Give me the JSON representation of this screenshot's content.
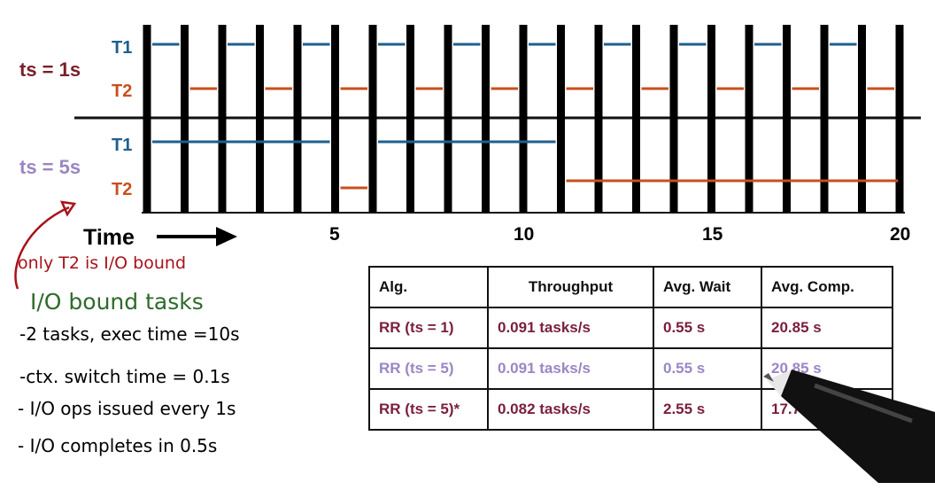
{
  "colors": {
    "t1": "#1f5f8f",
    "t2": "#c8501e",
    "ts1": "#7a1f2b",
    "ts5": "#9a86c4",
    "note_red": "#a8121a",
    "note_green": "#2e6b2a",
    "row_dark": "#7a1f3b",
    "row_light": "#9a86c4"
  },
  "timeline": {
    "ts1_label": "ts = 1s",
    "ts5_label": "ts = 5s",
    "t1_label": "T1",
    "t2_label": "T2",
    "time_label": "Time",
    "ticks": [
      "5",
      "10",
      "15",
      "20"
    ]
  },
  "notes": {
    "red": "only T2 is I/O bound",
    "green": "I/O bound tasks",
    "lines": [
      "-2 tasks, exec time =10s",
      "-ctx. switch time = 0.1s",
      "- I/O ops issued every 1s",
      "- I/O completes in 0.5s"
    ]
  },
  "table": {
    "headers": [
      "Alg.",
      "Throughput",
      "Avg. Wait",
      "Avg. Comp."
    ],
    "rows": [
      [
        "RR (ts = 1)",
        "0.091 tasks/s",
        "0.55 s",
        "20.85 s"
      ],
      [
        "RR (ts = 5)",
        "0.091 tasks/s",
        "0.55 s",
        "20.85 s"
      ],
      [
        "RR (ts = 5)*",
        "0.082 tasks/s",
        "2.55 s",
        "17.75 s"
      ]
    ]
  }
}
